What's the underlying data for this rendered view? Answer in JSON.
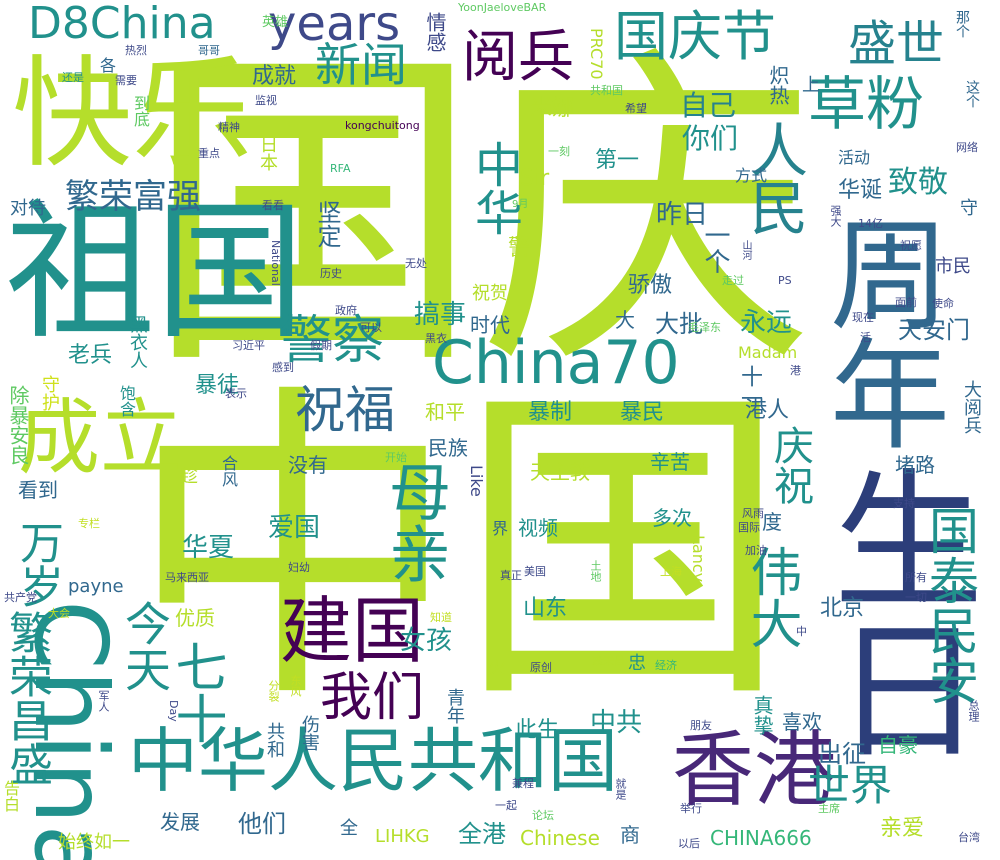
{
  "words": [
    "中国",
    "国庆",
    "祖国",
    "快乐",
    "生日",
    "周年",
    "中华人民共和国",
    "香港",
    "China",
    "成立",
    "建国",
    "China70",
    "草粉",
    "人民",
    "伟大",
    "国泰民安",
    "祝福",
    "警察",
    "母亲",
    "years",
    "D8China",
    "阅兵",
    "国庆节",
    "盛世",
    "新闻",
    "繁荣富强",
    "中华",
    "七十",
    "万岁",
    "今天",
    "我们",
    "世界",
    "繁荣昌盛",
    "庆祝",
    "华诞",
    "致敬",
    "你们",
    "自己",
    "炽热",
    "坚定",
    "昨日",
    "一个",
    "米娜",
    "第一",
    "成就",
    "情感",
    "YoonJaeloveBAR",
    "kongchuitong",
    "PRC70",
    "英雄",
    "各",
    "热烈",
    "哥哥",
    "还是",
    "需要",
    "到底",
    "监视",
    "日本",
    "精神",
    "重点",
    "看看",
    "对待",
    "RFA",
    "9月",
    "一刻",
    "方式",
    "活动",
    "网络",
    "共和国",
    "希望",
    "那个",
    "这个",
    "上",
    "守",
    "强大",
    "市民",
    "14亿",
    "祝愿",
    "山河",
    "历史",
    "无处",
    "National",
    "Sir",
    "警",
    "祝贺",
    "骄傲",
    "黑衣人",
    "搞事",
    "时代",
    "大",
    "大批",
    "永远",
    "天安门",
    "使命",
    "面前",
    "政府",
    "可以",
    "毛泽东",
    "现在",
    "活",
    "黑衣",
    "假期",
    "走过",
    "PS",
    "老兵",
    "暴徒",
    "习近平",
    "感到",
    "守护",
    "饱含",
    "表示",
    "暴制",
    "暴民",
    "十一",
    "港人",
    "大阅兵",
    "除暴安良",
    "和平",
    "民族",
    "没有",
    "堵路",
    "港",
    "合风",
    "开始",
    "天主教",
    "辛苦",
    "Madam",
    "趁",
    "看到",
    "爱国",
    "视频",
    "多次",
    "度",
    "华夏",
    "Like",
    "界",
    "专栏",
    "妇幼",
    "马来西亚",
    "payne",
    "美国",
    "上海",
    "Lancy",
    "真正",
    "北京",
    "一切",
    "风雨",
    "国际",
    "支持",
    "加油",
    "所有",
    "山东",
    "优质",
    "共产党",
    "大会",
    "知道",
    "女孩",
    "火",
    "原创",
    "繁荣昌",
    "忠",
    "经济",
    "中",
    "土地",
    "分裂",
    "东风",
    "军人",
    "Day",
    "伤害",
    "共和",
    "青年",
    "此生",
    "中共",
    "真挚",
    "喜欢",
    "出征",
    "自豪",
    "总理",
    "朋友",
    "兼程",
    "一起",
    "论坛",
    "告白",
    "发展",
    "他们",
    "全",
    "LIHKG",
    "全港",
    "Chinese",
    "商",
    "CHINA666",
    "亲爱",
    "主席",
    "就是",
    "举行",
    "以后",
    "始终如一",
    "台湾"
  ]
}
